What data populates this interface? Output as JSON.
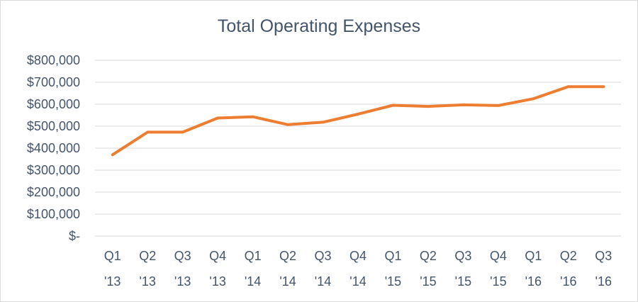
{
  "chart_data": {
    "type": "line",
    "title": "Total Operating Expenses",
    "xlabel": "",
    "ylabel": "",
    "categories": [
      [
        "Q1",
        "'13"
      ],
      [
        "Q2",
        "'13"
      ],
      [
        "Q3",
        "'13"
      ],
      [
        "Q4",
        "'13"
      ],
      [
        "Q1",
        "'14"
      ],
      [
        "Q2",
        "'14"
      ],
      [
        "Q3",
        "'14"
      ],
      [
        "Q4",
        "'14"
      ],
      [
        "Q1",
        "'15"
      ],
      [
        "Q2",
        "'15"
      ],
      [
        "Q3",
        "'15"
      ],
      [
        "Q4",
        "'15"
      ],
      [
        "Q1",
        "'16"
      ],
      [
        "Q2",
        "'16"
      ],
      [
        "Q3",
        "'16"
      ]
    ],
    "series": [
      {
        "color": "#ed7d31",
        "values": [
          370000,
          473000,
          473000,
          537000,
          543000,
          507000,
          518000,
          555000,
          595000,
          590000,
          597000,
          594000,
          625000,
          680000,
          680000
        ]
      }
    ],
    "ylim": [
      0,
      800000
    ],
    "yticks": [
      {
        "value": 800000,
        "label": "$800,000"
      },
      {
        "value": 700000,
        "label": "$700,000"
      },
      {
        "value": 600000,
        "label": "$600,000"
      },
      {
        "value": 500000,
        "label": "$500,000"
      },
      {
        "value": 400000,
        "label": "$400,000"
      },
      {
        "value": 300000,
        "label": "$300,000"
      },
      {
        "value": 200000,
        "label": "$200,000"
      },
      {
        "value": 100000,
        "label": "$100,000"
      },
      {
        "value": 0,
        "label": "$-"
      }
    ],
    "grid": true,
    "legend": "none"
  }
}
